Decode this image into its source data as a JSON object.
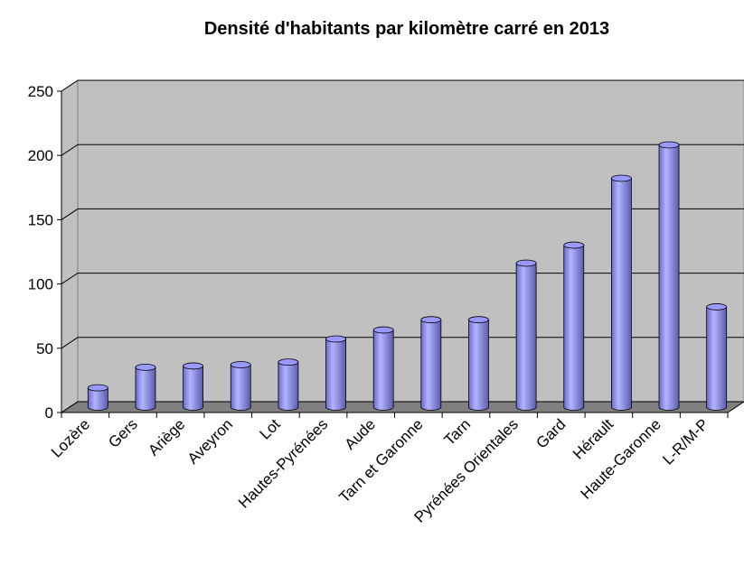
{
  "chart_data": {
    "type": "bar",
    "title": "Densité d'habitants par kilomètre carré en 2013",
    "categories": [
      "Lozère",
      "Gers",
      "Ariège",
      "Aveyron",
      "Lot",
      "Hautes-Pyrénées",
      "Aude",
      "Tarn et Garonne",
      "Tarn",
      "Pyrénées Orientales",
      "Gard",
      "Hérault",
      "Haute-Garonne",
      "L-R/M-P"
    ],
    "values": [
      15,
      31,
      32,
      33,
      35,
      53,
      60,
      68,
      68,
      112,
      126,
      178,
      204,
      78
    ],
    "color": "#9999ff",
    "ylim": [
      0,
      250
    ],
    "yticks": [
      0,
      50,
      100,
      150,
      200,
      250
    ],
    "grid": true
  }
}
